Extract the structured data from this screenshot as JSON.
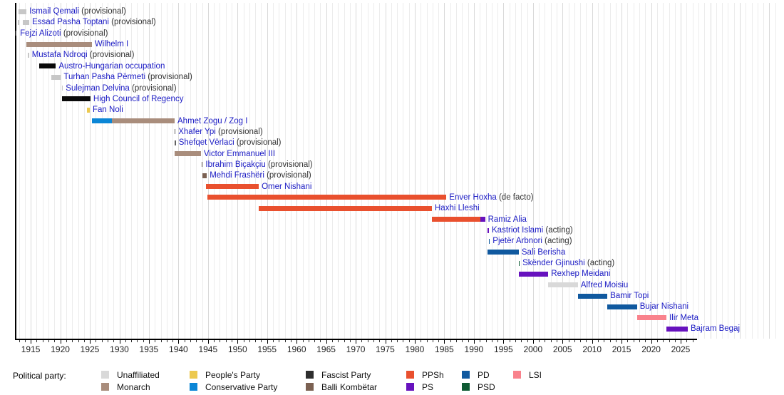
{
  "chart_data": {
    "type": "bar",
    "variant": "gantt-timeline",
    "title": "",
    "xlabel": "",
    "ylabel": "",
    "x_axis": {
      "min": 1912.45,
      "max": 2027.75,
      "grid": true,
      "minor_tick_interval": 1,
      "major_tick_interval": 5,
      "tick_labels": [
        "1915",
        "1920",
        "1925",
        "1930",
        "1935",
        "1940",
        "1945",
        "1950",
        "1955",
        "1960",
        "1965",
        "1970",
        "1975",
        "1980",
        "1985",
        "1990",
        "1995",
        "2000",
        "2005",
        "2010",
        "2015",
        "2020",
        "2025"
      ]
    },
    "party_colors": {
      "unaffiliated": "#D9D9D9",
      "provisional_gray": "#C7C7C7",
      "monarch": "#A98D7C",
      "peoples_party": "#ECC94F",
      "conservative_party": "#0B86D6",
      "fascist_party": "#2E2E2E",
      "balli_kombetar": "#7B6152",
      "ppsh": "#E9502E",
      "ps": "#6712BE",
      "pd": "#10599F",
      "psd": "#0E5B33",
      "lsi": "#F9828C",
      "occupation_black": "#0A0A0A",
      "dark_gray": "#606060",
      "dark_brown": "#5D5248"
    },
    "text_colors": {
      "name_link": "#1A1AC4",
      "suffix": "#333333",
      "axis_label": "#222222"
    },
    "rows": [
      {
        "name": "Ismail Qemali",
        "suffix": "(provisional)",
        "segments": [
          {
            "party": "provisional_gray",
            "start": 1912.9,
            "end": 1914.3
          }
        ]
      },
      {
        "name": "Essad Pasha Toptani",
        "suffix": "(provisional)",
        "segments": [
          {
            "party": "provisional_gray",
            "start": 1912.85,
            "end": 1913.1
          },
          {
            "party": "provisional_gray",
            "start": 1913.6,
            "end": 1914.75
          }
        ]
      },
      {
        "name": "Fejzi Alizoti",
        "suffix": "(provisional)",
        "segments": [
          {
            "party": "provisional_gray",
            "start": 1912.5,
            "end": 1912.7
          }
        ]
      },
      {
        "name": "Wilhelm I",
        "suffix": null,
        "segments": [
          {
            "party": "monarch",
            "start": 1914.2,
            "end": 1925.35
          }
        ]
      },
      {
        "name": "Mustafa Ndroqi",
        "suffix": "(provisional)",
        "segments": [
          {
            "party": "provisional_gray",
            "start": 1914.5,
            "end": 1914.7
          }
        ]
      },
      {
        "name": "Austro-Hungarian occupation",
        "suffix": null,
        "segments": [
          {
            "party": "occupation_black",
            "start": 1916.45,
            "end": 1919.25
          }
        ]
      },
      {
        "name": "Turhan Pasha Përmeti",
        "suffix": "(provisional)",
        "segments": [
          {
            "party": "provisional_gray",
            "start": 1918.5,
            "end": 1920.1
          }
        ]
      },
      {
        "name": "Sulejman Delvina",
        "suffix": "(provisional)",
        "segments": [
          {
            "party": "provisional_gray",
            "start": 1920.25,
            "end": 1920.45
          }
        ]
      },
      {
        "name": "High Council of Regency",
        "suffix": null,
        "segments": [
          {
            "party": "occupation_black",
            "start": 1920.3,
            "end": 1925.1
          }
        ]
      },
      {
        "name": "Fan Noli",
        "suffix": null,
        "segments": [
          {
            "party": "peoples_party",
            "start": 1924.5,
            "end": 1925.0
          }
        ]
      },
      {
        "name": "Ahmet Zogu / Zog I",
        "suffix": null,
        "segments": [
          {
            "party": "conservative_party",
            "start": 1925.35,
            "end": 1928.7
          },
          {
            "party": "monarch",
            "start": 1928.7,
            "end": 1939.35
          }
        ]
      },
      {
        "name": "Xhafer Ypi",
        "suffix": "(provisional)",
        "segments": [
          {
            "party": "dark_gray",
            "start": 1939.3,
            "end": 1939.5
          }
        ]
      },
      {
        "name": "Shefqet Vërlaci",
        "suffix": "(provisional)",
        "segments": [
          {
            "party": "dark_gray",
            "start": 1939.35,
            "end": 1939.55
          }
        ]
      },
      {
        "name": "Victor Emmanuel III",
        "suffix": null,
        "segments": [
          {
            "party": "monarch",
            "start": 1939.35,
            "end": 1943.8
          }
        ]
      },
      {
        "name": "Ibrahim Biçakçiu",
        "suffix": "(provisional)",
        "segments": [
          {
            "party": "dark_brown",
            "start": 1943.9,
            "end": 1944.1
          }
        ]
      },
      {
        "name": "Mehdi Frashëri",
        "suffix": "(provisional)",
        "segments": [
          {
            "party": "balli_kombetar",
            "start": 1944.0,
            "end": 1944.8
          }
        ]
      },
      {
        "name": "Omer Nishani",
        "suffix": null,
        "segments": [
          {
            "party": "ppsh",
            "start": 1944.6,
            "end": 1953.6
          }
        ]
      },
      {
        "name": "Enver Hoxha",
        "suffix": "(de facto)",
        "segments": [
          {
            "party": "ppsh",
            "start": 1944.95,
            "end": 1985.35
          }
        ]
      },
      {
        "name": "Haxhi Lleshi",
        "suffix": null,
        "segments": [
          {
            "party": "ppsh",
            "start": 1953.6,
            "end": 1982.9
          }
        ]
      },
      {
        "name": "Ramiz Alia",
        "suffix": null,
        "segments": [
          {
            "party": "ppsh",
            "start": 1982.9,
            "end": 1991.1
          },
          {
            "party": "ps",
            "start": 1991.1,
            "end": 1991.9
          }
        ]
      },
      {
        "name": "Kastriot Islami",
        "suffix": "(acting)",
        "segments": [
          {
            "party": "ps",
            "start": 1992.35,
            "end": 1992.55
          }
        ]
      },
      {
        "name": "Pjetër Arbnori",
        "suffix": "(acting)",
        "segments": [
          {
            "party": "pd",
            "start": 1992.5,
            "end": 1992.7
          }
        ]
      },
      {
        "name": "Sali Berisha",
        "suffix": null,
        "segments": [
          {
            "party": "pd",
            "start": 1992.3,
            "end": 1997.6
          }
        ]
      },
      {
        "name": "Skënder Gjinushi",
        "suffix": "(acting)",
        "segments": [
          {
            "party": "psd",
            "start": 1997.55,
            "end": 1997.75
          }
        ]
      },
      {
        "name": "Rexhep Meidani",
        "suffix": null,
        "segments": [
          {
            "party": "ps",
            "start": 1997.6,
            "end": 2002.6
          }
        ]
      },
      {
        "name": "Alfred Moisiu",
        "suffix": null,
        "segments": [
          {
            "party": "unaffiliated",
            "start": 2002.6,
            "end": 2007.6
          }
        ]
      },
      {
        "name": "Bamir Topi",
        "suffix": null,
        "segments": [
          {
            "party": "pd",
            "start": 2007.6,
            "end": 2012.6
          }
        ]
      },
      {
        "name": "Bujar Nishani",
        "suffix": null,
        "segments": [
          {
            "party": "pd",
            "start": 2012.6,
            "end": 2017.6
          }
        ]
      },
      {
        "name": "Ilir Meta",
        "suffix": null,
        "segments": [
          {
            "party": "lsi",
            "start": 2017.6,
            "end": 2022.6
          }
        ]
      },
      {
        "name": "Bajram Begaj",
        "suffix": null,
        "segments": [
          {
            "party": "ps",
            "start": 2022.6,
            "end": 2026.2
          }
        ]
      }
    ],
    "legend": {
      "title": "Political party:",
      "items": [
        {
          "label": "Unaffiliated",
          "party": "unaffiliated",
          "col": 0,
          "row": 0
        },
        {
          "label": "Monarch",
          "party": "monarch",
          "col": 0,
          "row": 1
        },
        {
          "label": "People's Party",
          "party": "peoples_party",
          "col": 1,
          "row": 0
        },
        {
          "label": "Conservative Party",
          "party": "conservative_party",
          "col": 1,
          "row": 1
        },
        {
          "label": "Fascist Party",
          "party": "fascist_party",
          "col": 2,
          "row": 0
        },
        {
          "label": "Balli Kombëtar",
          "party": "balli_kombetar",
          "col": 2,
          "row": 1
        },
        {
          "label": "PPSh",
          "party": "ppsh",
          "col": 3,
          "row": 0
        },
        {
          "label": "PS",
          "party": "ps",
          "col": 3,
          "row": 1
        },
        {
          "label": "PD",
          "party": "pd",
          "col": 4,
          "row": 0
        },
        {
          "label": "PSD",
          "party": "psd",
          "col": 4,
          "row": 1
        },
        {
          "label": "LSI",
          "party": "lsi",
          "col": 5,
          "row": 0
        }
      ]
    }
  }
}
